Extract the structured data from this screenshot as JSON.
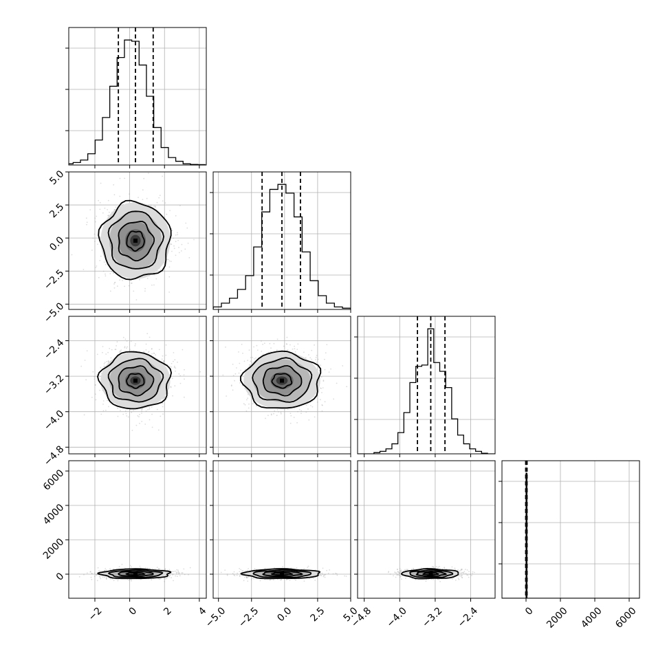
{
  "chart_data": {
    "type": "corner",
    "grid": true,
    "variables": [
      {
        "range": [
          -3.5,
          4.4
        ],
        "ticks": [
          {
            "v": -2,
            "label": "−2"
          },
          {
            "v": 0,
            "label": "0"
          },
          {
            "v": 2,
            "label": "2"
          },
          {
            "v": 4,
            "label": "4"
          }
        ],
        "quantiles": [
          -0.65,
          0.33,
          1.35
        ],
        "mean": 0.33,
        "sd": 1.0
      },
      {
        "range": [
          -5.4,
          5.0
        ],
        "ticks": [
          {
            "v": -5.0,
            "label": "−5.0"
          },
          {
            "v": -2.5,
            "label": "−2.5"
          },
          {
            "v": 0.0,
            "label": "0.0"
          },
          {
            "v": 2.5,
            "label": "2.5"
          },
          {
            "v": 5.0,
            "label": "5.0"
          }
        ],
        "quantiles": [
          -1.7,
          -0.2,
          1.2
        ],
        "mean": -0.2,
        "sd": 1.45
      },
      {
        "range": [
          -4.95,
          -1.85
        ],
        "ticks": [
          {
            "v": -4.8,
            "label": "−4.8"
          },
          {
            "v": -4.0,
            "label": "−4.0"
          },
          {
            "v": -3.2,
            "label": "−3.2"
          },
          {
            "v": -2.4,
            "label": "−2.4"
          }
        ],
        "quantiles": [
          -3.6,
          -3.3,
          -2.98
        ],
        "mean": -3.3,
        "sd": 0.32
      },
      {
        "range": [
          -1400,
          6600
        ],
        "ticks": [
          {
            "v": 0,
            "label": "0"
          },
          {
            "v": 2000,
            "label": "2000"
          },
          {
            "v": 4000,
            "label": "4000"
          },
          {
            "v": 6000,
            "label": "6000"
          }
        ],
        "quantiles": [
          -20,
          20,
          60
        ],
        "mean": 20,
        "sd": 30
      }
    ],
    "histograms": [
      [
        1,
        2,
        4,
        9,
        20,
        38,
        63,
        86,
        100,
        99,
        80,
        55,
        30,
        14,
        6,
        3,
        1,
        0.5,
        0.3
      ],
      [
        1,
        2,
        5,
        9,
        16,
        27,
        50,
        78,
        96,
        100,
        93,
        74,
        46,
        23,
        11,
        5,
        2,
        1,
        0.5
      ],
      [
        1,
        2,
        4,
        8,
        17,
        33,
        57,
        70,
        71,
        100,
        73,
        66,
        53,
        28,
        15,
        8,
        4,
        2,
        0.5
      ],
      [
        0,
        0,
        0,
        0,
        100,
        0,
        0,
        0,
        0,
        0,
        0,
        0,
        0,
        0,
        0,
        0,
        0,
        0,
        0
      ]
    ],
    "contour_levels": [
      0.5,
      1.0,
      1.5,
      2.0
    ]
  }
}
